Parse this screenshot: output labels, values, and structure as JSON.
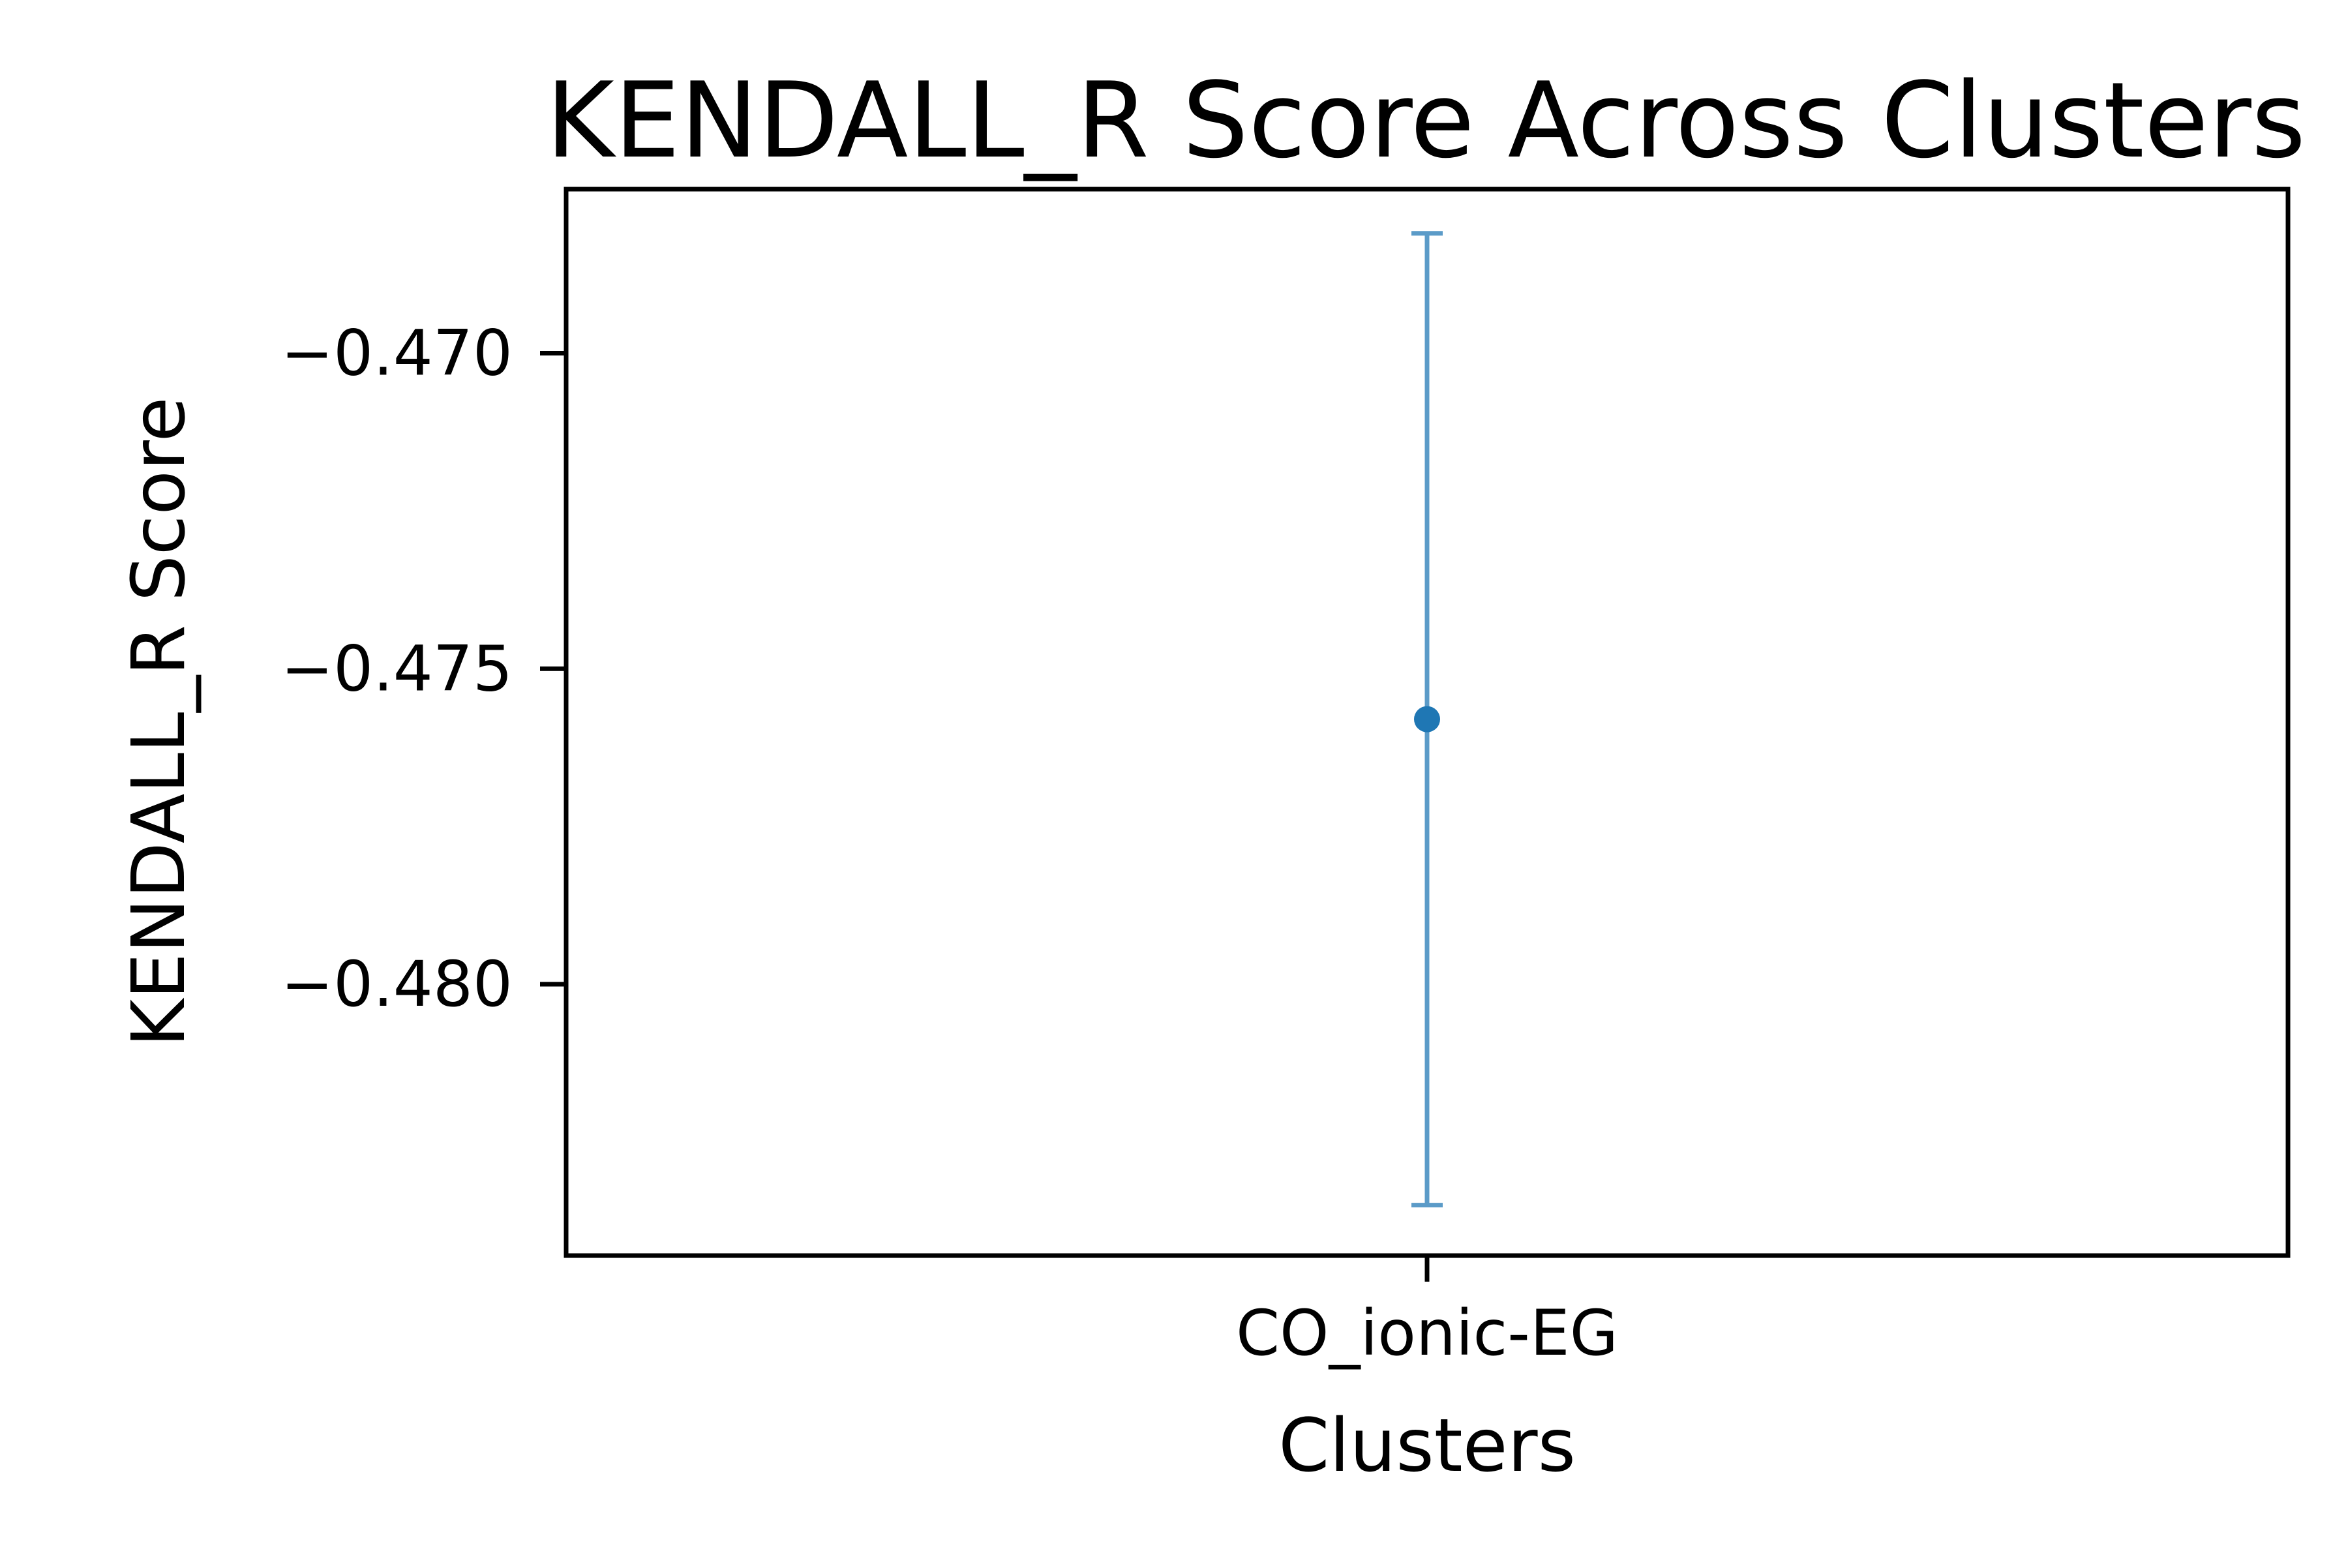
{
  "chart_data": {
    "type": "scatter",
    "title": "KENDALL_R Score Across Clusters",
    "xlabel": "Clusters",
    "ylabel": "KENDALL_R Score",
    "categories": [
      "CO_ionic-EG"
    ],
    "series": [
      {
        "values": [
          -0.4758
        ],
        "error_low": [
          -0.4835
        ],
        "error_high": [
          -0.4681
        ]
      }
    ],
    "ylim": [
      -0.4843,
      -0.4674
    ],
    "y_ticks": [
      -0.47,
      -0.475,
      -0.48
    ],
    "y_tick_labels": [
      "−0.470",
      "−0.475",
      "−0.480"
    ],
    "grid": false,
    "legend": "none",
    "colors": {
      "point": "#1f77b4",
      "errorbar": "#5b9bc8",
      "axes": "#000000"
    }
  }
}
